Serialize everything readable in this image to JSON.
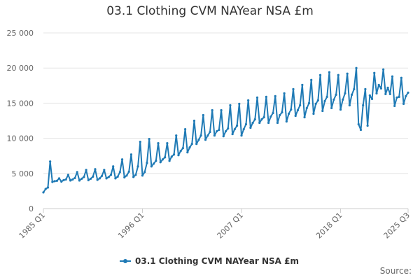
{
  "chart_data": {
    "type": "line",
    "title": "03.1 Clothing CVM NAYear NSA £m",
    "xlabel": "",
    "ylabel": "",
    "ylim": [
      0,
      25000
    ],
    "y_ticks": [
      "0",
      "5 000",
      "10 000",
      "15 000",
      "20 000",
      "25 000"
    ],
    "x_tick_labels": [
      "1985 Q1",
      "1996 Q1",
      "2007 Q1",
      "2018 Q1",
      "2025 Q3"
    ],
    "x_range": [
      "1985 Q1",
      "2025 Q3"
    ],
    "grid": true,
    "legend_position": "bottom",
    "series": [
      {
        "name": "03.1 Clothing CVM NAYear NSA £m",
        "color": "#1f7ab5",
        "x_start": "1985 Q1",
        "frequency": "quarterly",
        "values": [
          2300,
          2800,
          3000,
          6700,
          3800,
          3900,
          3950,
          4300,
          3850,
          4050,
          4150,
          4800,
          4000,
          4150,
          4350,
          5200,
          4000,
          4250,
          4500,
          5500,
          4050,
          4250,
          4550,
          5600,
          4100,
          4300,
          4650,
          5500,
          4300,
          4500,
          4800,
          6000,
          4300,
          4550,
          5200,
          7000,
          4450,
          4700,
          5250,
          7700,
          4500,
          4800,
          6000,
          9500,
          4700,
          5200,
          6500,
          9900,
          6000,
          6400,
          6800,
          9300,
          6600,
          7000,
          7300,
          9300,
          6800,
          7400,
          7700,
          10400,
          7600,
          8200,
          8600,
          11300,
          8000,
          8700,
          9200,
          12500,
          9200,
          9800,
          10400,
          13300,
          9800,
          10400,
          10900,
          14000,
          10400,
          11000,
          11200,
          14000,
          10300,
          11000,
          11400,
          14700,
          10600,
          11300,
          11800,
          14900,
          10400,
          11300,
          12000,
          15400,
          11500,
          12200,
          12700,
          15800,
          12200,
          12700,
          13000,
          15900,
          12200,
          13100,
          13600,
          16000,
          12200,
          13300,
          13700,
          16400,
          12400,
          13500,
          14100,
          17000,
          13200,
          14000,
          14700,
          17600,
          13000,
          14300,
          15000,
          18300,
          13500,
          14900,
          15400,
          19000,
          13900,
          15300,
          15900,
          19400,
          14300,
          15500,
          16200,
          19000,
          14100,
          15500,
          16400,
          19200,
          14700,
          16200,
          17000,
          20000,
          12000,
          11200,
          14700,
          17000,
          11800,
          16100,
          15600,
          19300,
          16400,
          17600,
          17100,
          19800,
          16300,
          17200,
          16300,
          18800,
          14600,
          15800,
          15900,
          18600,
          14900,
          16000,
          16500
        ]
      }
    ]
  },
  "source_label": "Source:"
}
